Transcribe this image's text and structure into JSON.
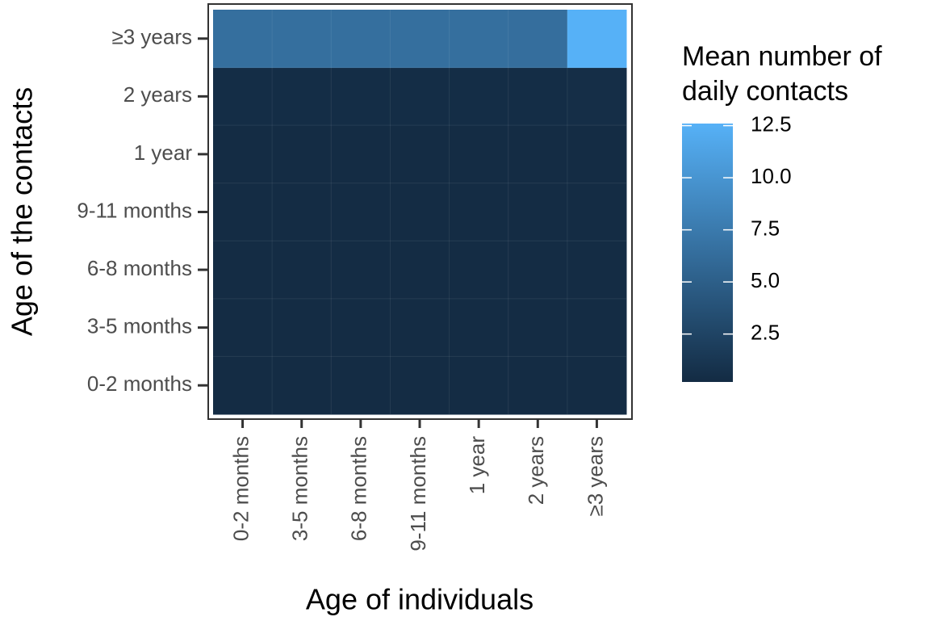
{
  "chart_data": {
    "type": "heatmap",
    "x_label": "Age of individuals",
    "y_label": "Age of the contacts",
    "x": [
      "0-2 months",
      "3-5 months",
      "6-8 months",
      "9-11 months",
      "1 year",
      "2 years",
      "≥3 years"
    ],
    "y": [
      "0-2 months",
      "3-5 months",
      "6-8 months",
      "9-11 months",
      "1 year",
      "2 years",
      "≥3 years"
    ],
    "values": [
      [
        0.3,
        0.3,
        0.3,
        0.3,
        0.3,
        0.3,
        0.3
      ],
      [
        0.3,
        0.3,
        0.3,
        0.3,
        0.3,
        0.3,
        0.3
      ],
      [
        0.3,
        0.3,
        0.3,
        0.3,
        0.3,
        0.3,
        0.3
      ],
      [
        0.3,
        0.3,
        0.3,
        0.3,
        0.3,
        0.3,
        0.3
      ],
      [
        0.3,
        0.3,
        0.3,
        0.3,
        0.3,
        0.3,
        0.3
      ],
      [
        0.4,
        0.4,
        0.4,
        0.4,
        0.4,
        0.4,
        0.5
      ],
      [
        6.5,
        6.5,
        6.5,
        6.5,
        6.5,
        6.4,
        12.6
      ]
    ],
    "legend_title": [
      "Mean number of",
      "daily contacts"
    ],
    "colorlim": [
      0.2,
      12.6
    ],
    "colorticks": [
      2.5,
      {
        "value": 5,
        "label": "5.0"
      },
      7.5,
      {
        "value": 10,
        "label": "10.0"
      },
      12.5
    ],
    "low_color": "#132B43",
    "high_color": "#56B1F7"
  }
}
